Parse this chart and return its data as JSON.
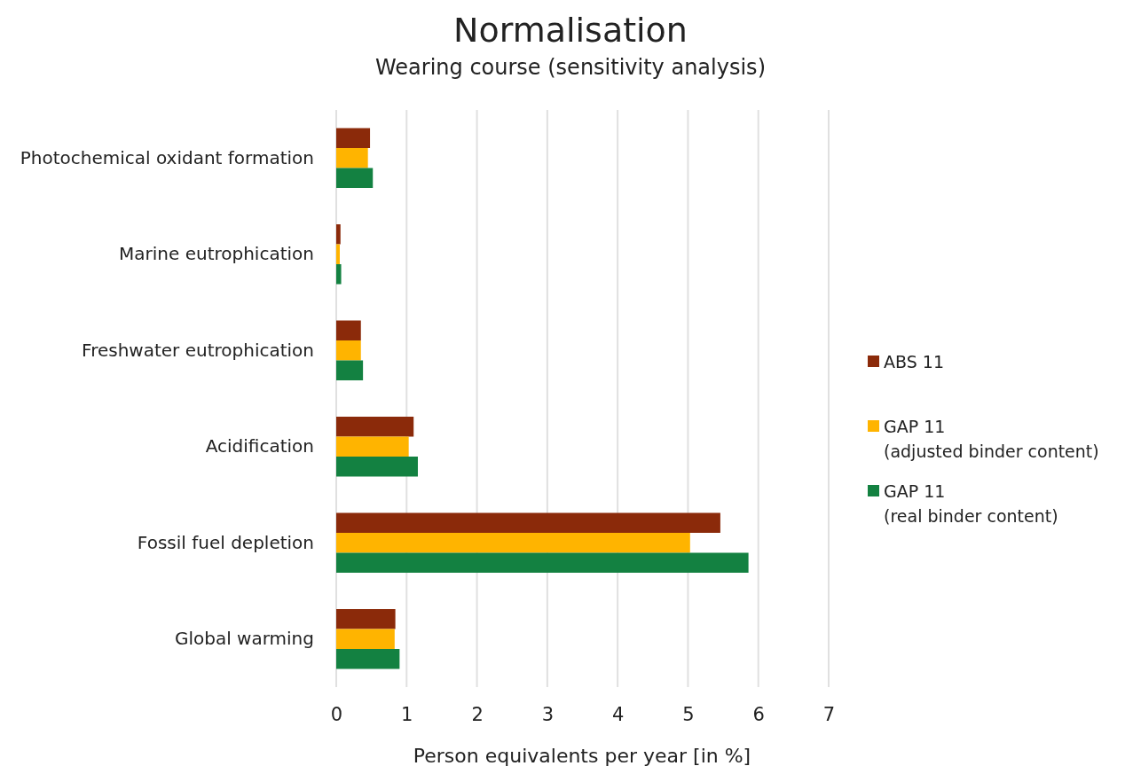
{
  "chart_data": {
    "type": "bar",
    "orientation": "horizontal",
    "title": "Normalisation",
    "subtitle": "Wearing course (sensitivity analysis)",
    "xlabel": "Person equivalents per year [in %]",
    "categories": [
      "Photochemical oxidant formation",
      "Marine eutrophication",
      "Freshwater eutrophication",
      "Acidification",
      "Fossil fuel depletion",
      "Global warming"
    ],
    "series": [
      {
        "name": "ABS 11",
        "color": "#8b2a0a",
        "values": [
          0.48,
          0.06,
          0.35,
          1.1,
          5.46,
          0.84
        ]
      },
      {
        "name": "GAP 11 (adjusted binder content)",
        "color": "#ffb400",
        "values": [
          0.45,
          0.05,
          0.35,
          1.03,
          5.03,
          0.83
        ]
      },
      {
        "name": "GAP 11 (real binder content)",
        "color": "#138141",
        "values": [
          0.52,
          0.07,
          0.38,
          1.16,
          5.86,
          0.9
        ]
      }
    ],
    "xlim": [
      0,
      7
    ],
    "xticks": [
      0,
      1,
      2,
      3,
      4,
      5,
      6,
      7
    ],
    "grid": "x",
    "legend": "right"
  }
}
